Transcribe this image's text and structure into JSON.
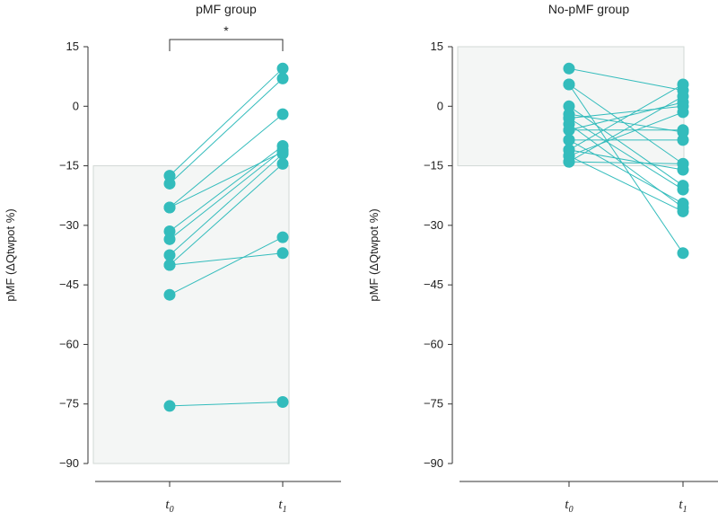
{
  "chart_data": [
    {
      "type": "scatter",
      "title": "pMF group",
      "ylabel": "pMF (ΔQtwpot %)",
      "ylim": [
        -90,
        15
      ],
      "yticks": [
        15,
        0,
        -15,
        -30,
        -45,
        -60,
        -75,
        -90
      ],
      "ytick_labels": [
        "15",
        "0",
        "−15",
        "−30",
        "−45",
        "−60",
        "−75",
        "−90"
      ],
      "categories": [
        {
          "base": "t",
          "sub": "0"
        },
        {
          "base": "t",
          "sub": "1"
        }
      ],
      "shaded_range": [
        -90,
        -15
      ],
      "significance": "*",
      "pairs": [
        [
          -17.5,
          9.5
        ],
        [
          -19.5,
          7.0
        ],
        [
          -25.5,
          -2.0
        ],
        [
          -31.5,
          -10.0
        ],
        [
          -33.5,
          -11.0
        ],
        [
          -37.5,
          -12.0
        ],
        [
          -40.0,
          -14.5
        ],
        [
          -47.5,
          -33.0
        ],
        [
          -25.5,
          -11.5
        ],
        [
          -40.0,
          -37.0
        ],
        [
          -75.5,
          -74.5
        ]
      ]
    },
    {
      "type": "scatter",
      "title": "No-pMF group",
      "ylabel": "pMF (ΔQtwpot %)",
      "ylim": [
        -90,
        15
      ],
      "yticks": [
        15,
        0,
        -15,
        -30,
        -45,
        -60,
        -75,
        -90
      ],
      "ytick_labels": [
        "15",
        "0",
        "−15",
        "−30",
        "−45",
        "−60",
        "−75",
        "−90"
      ],
      "categories": [
        {
          "base": "t",
          "sub": "0"
        },
        {
          "base": "t",
          "sub": "1"
        }
      ],
      "shaded_range": [
        -15,
        15
      ],
      "significance": "",
      "pairs": [
        [
          9.5,
          4.0
        ],
        [
          5.5,
          -37.0
        ],
        [
          5.5,
          -14.5
        ],
        [
          0,
          -20.0
        ],
        [
          -3.0,
          0.0
        ],
        [
          -3.0,
          -21.0
        ],
        [
          -4.5,
          -25.5
        ],
        [
          -6.0,
          -6.0
        ],
        [
          -6.0,
          1.0
        ],
        [
          -8.5,
          -8.5
        ],
        [
          -8.5,
          -24.5
        ],
        [
          -11.0,
          5.5
        ],
        [
          -11.0,
          -16.0
        ],
        [
          -12.5,
          -26.5
        ],
        [
          -12.5,
          -1.5
        ],
        [
          -14.0,
          2.5
        ],
        [
          -14.0,
          -14.5
        ],
        [
          -2.0,
          -6.5
        ]
      ]
    }
  ]
}
